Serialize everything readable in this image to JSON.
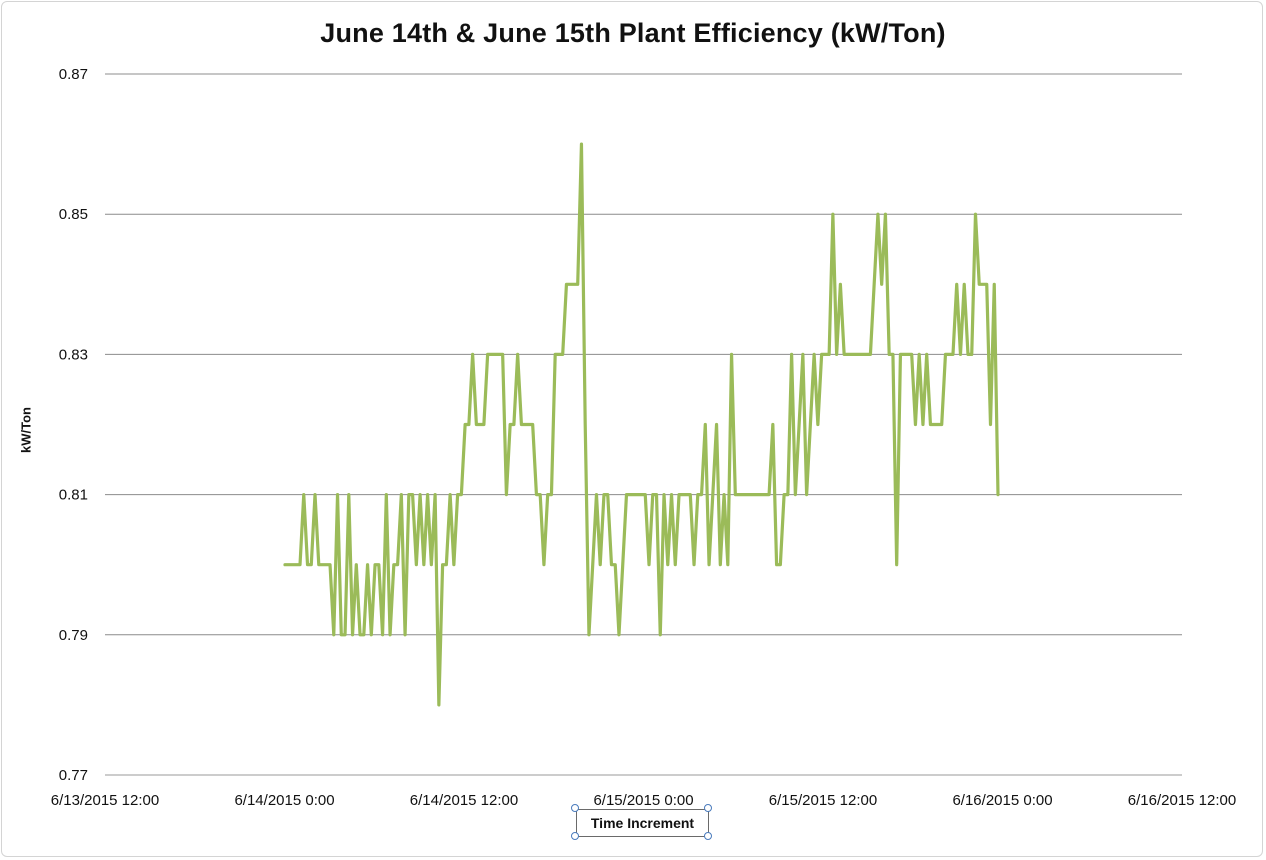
{
  "chart_data": {
    "type": "line",
    "title": "June 14th & June 15th Plant Efficiency (kW/Ton)",
    "xlabel": "Time Increment",
    "ylabel": "kW/Ton",
    "ylim": [
      0.77,
      0.87
    ],
    "y_ticks": [
      "0.77",
      "0.79",
      "0.81",
      "0.83",
      "0.85",
      "0.87"
    ],
    "x_ticks": [
      "6/13/2015 12:00",
      "6/14/2015 0:00",
      "6/14/2015 12:00",
      "6/15/2015 0:00",
      "6/15/2015 12:00",
      "6/16/2015 0:00",
      "6/16/2015 12:00"
    ],
    "grid": "horizontal",
    "series_color": "#9bbb59",
    "series": [
      {
        "values": [
          0.8,
          0.8,
          0.8,
          0.8,
          0.8,
          0.81,
          0.8,
          0.8,
          0.81,
          0.8,
          0.8,
          0.8,
          0.8,
          0.79,
          0.81,
          0.79,
          0.79,
          0.81,
          0.79,
          0.8,
          0.79,
          0.79,
          0.8,
          0.79,
          0.8,
          0.8,
          0.79,
          0.81,
          0.79,
          0.8,
          0.8,
          0.81,
          0.79,
          0.81,
          0.81,
          0.8,
          0.81,
          0.8,
          0.81,
          0.8,
          0.81,
          0.78,
          0.8,
          0.8,
          0.81,
          0.8,
          0.81,
          0.81,
          0.82,
          0.82,
          0.83,
          0.82,
          0.82,
          0.82,
          0.83,
          0.83,
          0.83,
          0.83,
          0.83,
          0.81,
          0.82,
          0.82,
          0.83,
          0.82,
          0.82,
          0.82,
          0.82,
          0.81,
          0.81,
          0.8,
          0.81,
          0.81,
          0.83,
          0.83,
          0.83,
          0.84,
          0.84,
          0.84,
          0.84,
          0.86,
          0.82,
          0.79,
          0.8,
          0.81,
          0.8,
          0.81,
          0.81,
          0.8,
          0.8,
          0.79,
          0.8,
          0.81,
          0.81,
          0.81,
          0.81,
          0.81,
          0.81,
          0.8,
          0.81,
          0.81,
          0.79,
          0.81,
          0.8,
          0.81,
          0.8,
          0.81,
          0.81,
          0.81,
          0.81,
          0.8,
          0.81,
          0.81,
          0.82,
          0.8,
          0.81,
          0.82,
          0.8,
          0.81,
          0.8,
          0.83,
          0.81,
          0.81,
          0.81,
          0.81,
          0.81,
          0.81,
          0.81,
          0.81,
          0.81,
          0.81,
          0.82,
          0.8,
          0.8,
          0.81,
          0.81,
          0.83,
          0.81,
          0.82,
          0.83,
          0.81,
          0.82,
          0.83,
          0.82,
          0.83,
          0.83,
          0.83,
          0.85,
          0.83,
          0.84,
          0.83,
          0.83,
          0.83,
          0.83,
          0.83,
          0.83,
          0.83,
          0.83,
          0.84,
          0.85,
          0.84,
          0.85,
          0.83,
          0.83,
          0.8,
          0.83,
          0.83,
          0.83,
          0.83,
          0.82,
          0.83,
          0.82,
          0.83,
          0.82,
          0.82,
          0.82,
          0.82,
          0.83,
          0.83,
          0.83,
          0.84,
          0.83,
          0.84,
          0.83,
          0.83,
          0.85,
          0.84,
          0.84,
          0.84,
          0.82,
          0.84,
          0.81
        ]
      }
    ]
  }
}
